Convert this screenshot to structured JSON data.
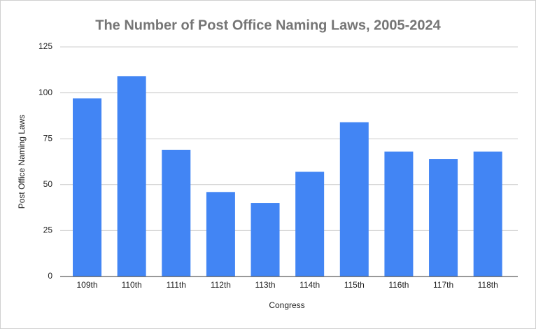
{
  "chart_data": {
    "type": "bar",
    "title": "The Number of Post Office Naming Laws, 2005-2024",
    "x_label": "Congress",
    "y_label": "Post Office Naming Laws",
    "categories": [
      "109th",
      "110th",
      "111th",
      "112th",
      "113th",
      "114th",
      "115th",
      "116th",
      "117th",
      "118th"
    ],
    "values": [
      97,
      109,
      69,
      46,
      40,
      57,
      84,
      68,
      64,
      68
    ],
    "color": "#4285f4",
    "ylim": [
      0,
      125
    ],
    "yticks": [
      0,
      25,
      50,
      75,
      100,
      125
    ],
    "grid": true
  }
}
